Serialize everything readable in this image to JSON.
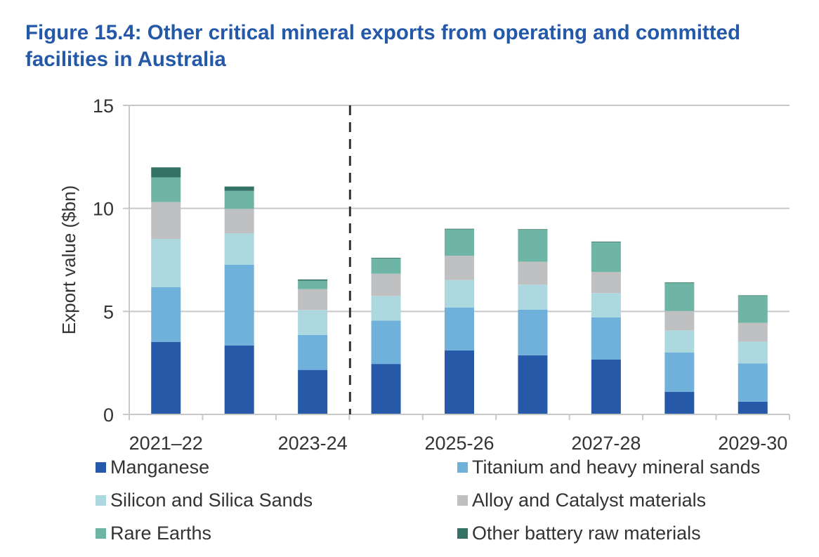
{
  "title": "Figure 15.4: Other critical mineral exports from operating and committed facilities in Australia",
  "chart_data": {
    "type": "bar",
    "stacked": true,
    "title": "Figure 15.4: Other critical mineral exports from operating and committed facilities in Australia",
    "xlabel": "",
    "ylabel": "Export value ($bn)",
    "ylim": [
      0,
      15
    ],
    "yticks": [
      0,
      5,
      10,
      15
    ],
    "grid": true,
    "legend_position": "bottom",
    "categories": [
      "2021–22",
      "2022-23",
      "2023-24",
      "2024-25",
      "2025-26",
      "2026-27",
      "2027-28",
      "2028-29",
      "2029-30"
    ],
    "category_labels_shown": [
      "2021–22",
      "",
      "2023-24",
      "",
      "2025-26",
      "",
      "2027-28",
      "",
      "2029-30"
    ],
    "annotations": [
      {
        "type": "vertical-dashed-line",
        "between": [
          "2023-24",
          "2024-25"
        ],
        "meaning": "actual vs forecast divider"
      }
    ],
    "series": [
      {
        "name": "Manganese",
        "color": "#265AA8",
        "values": [
          3.52,
          3.35,
          2.16,
          2.45,
          3.11,
          2.87,
          2.66,
          1.1,
          0.62
        ]
      },
      {
        "name": "Titanium and heavy mineral sands",
        "color": "#6FB1DB",
        "values": [
          2.66,
          3.92,
          1.7,
          2.1,
          2.08,
          2.21,
          2.05,
          1.91,
          1.86
        ]
      },
      {
        "name": "Silicon and Silica Sands",
        "color": "#ADD8DF",
        "values": [
          2.34,
          1.52,
          1.21,
          1.2,
          1.33,
          1.22,
          1.18,
          1.07,
          1.05
        ]
      },
      {
        "name": "Alloy and Catalyst materials",
        "color": "#BFC0C2",
        "values": [
          1.79,
          1.19,
          1.01,
          1.08,
          1.18,
          1.11,
          1.02,
          0.94,
          0.92
        ]
      },
      {
        "name": "Rare Earths",
        "color": "#6EB5A5",
        "values": [
          1.19,
          0.87,
          0.41,
          0.74,
          1.28,
          1.55,
          1.45,
          1.36,
          1.3
        ]
      },
      {
        "name": "Other battery raw materials",
        "color": "#357266",
        "values": [
          0.49,
          0.21,
          0.06,
          0.03,
          0.03,
          0.03,
          0.03,
          0.03,
          0.03
        ]
      }
    ]
  },
  "legend": {
    "items": [
      {
        "label": "Manganese",
        "color": "#265AA8"
      },
      {
        "label": "Titanium and heavy mineral sands",
        "color": "#6FB1DB"
      },
      {
        "label": "Silicon and Silica Sands",
        "color": "#ADD8DF"
      },
      {
        "label": "Alloy and Catalyst materials",
        "color": "#BFC0C2"
      },
      {
        "label": "Rare Earths",
        "color": "#6EB5A5"
      },
      {
        "label": "Other battery raw materials",
        "color": "#357266"
      }
    ]
  },
  "colors": {
    "title": "#2459A9",
    "text": "#333333",
    "grid": "#C8C8C8",
    "divider": "#333333"
  }
}
